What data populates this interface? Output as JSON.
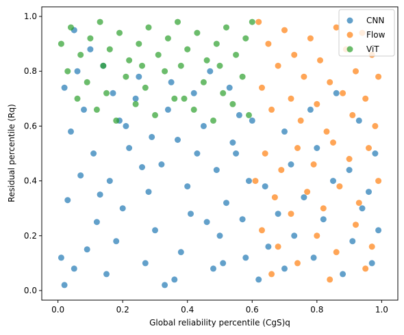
{
  "chart_data": {
    "type": "scatter",
    "title": "",
    "xlabel": "Global reliability percentile (CgS)q",
    "ylabel": "Residual percentile (Rq)",
    "xlim": [
      -0.05,
      1.05
    ],
    "ylim": [
      -0.035,
      1.035
    ],
    "xticks": [
      "0.0",
      "0.2",
      "0.4",
      "0.6",
      "0.8",
      "1.0"
    ],
    "yticks": [
      "0.0",
      "0.2",
      "0.4",
      "0.6",
      "0.8",
      "1.0"
    ],
    "grid": false,
    "legend_position": "top-right",
    "series": [
      {
        "name": "CNN",
        "color": "#1f77b4",
        "points": [
          [
            0.02,
            0.02
          ],
          [
            0.05,
            0.08
          ],
          [
            0.09,
            0.15
          ],
          [
            0.12,
            0.25
          ],
          [
            0.03,
            0.33
          ],
          [
            0.07,
            0.42
          ],
          [
            0.11,
            0.5
          ],
          [
            0.04,
            0.58
          ],
          [
            0.08,
            0.66
          ],
          [
            0.02,
            0.74
          ],
          [
            0.06,
            0.8
          ],
          [
            0.15,
            0.06
          ],
          [
            0.18,
            0.18
          ],
          [
            0.2,
            0.3
          ],
          [
            0.16,
            0.4
          ],
          [
            0.22,
            0.52
          ],
          [
            0.19,
            0.62
          ],
          [
            0.24,
            0.7
          ],
          [
            0.27,
            0.1
          ],
          [
            0.3,
            0.22
          ],
          [
            0.28,
            0.36
          ],
          [
            0.32,
            0.46
          ],
          [
            0.29,
            0.56
          ],
          [
            0.34,
            0.66
          ],
          [
            0.36,
            0.04
          ],
          [
            0.38,
            0.14
          ],
          [
            0.41,
            0.28
          ],
          [
            0.4,
            0.38
          ],
          [
            0.43,
            0.5
          ],
          [
            0.45,
            0.6
          ],
          [
            0.42,
            0.72
          ],
          [
            0.48,
            0.08
          ],
          [
            0.5,
            0.2
          ],
          [
            0.52,
            0.32
          ],
          [
            0.49,
            0.44
          ],
          [
            0.54,
            0.54
          ],
          [
            0.56,
            0.64
          ],
          [
            0.53,
            0.74
          ],
          [
            0.58,
            0.12
          ],
          [
            0.57,
            0.26
          ],
          [
            0.59,
            0.4
          ],
          [
            0.55,
            0.5
          ],
          [
            0.6,
            0.62
          ],
          [
            0.62,
            0.04
          ],
          [
            0.65,
            0.16
          ],
          [
            0.68,
            0.28
          ],
          [
            0.64,
            0.38
          ],
          [
            0.7,
            0.08
          ],
          [
            0.73,
            0.2
          ],
          [
            0.76,
            0.34
          ],
          [
            0.72,
            0.46
          ],
          [
            0.79,
            0.12
          ],
          [
            0.82,
            0.26
          ],
          [
            0.85,
            0.4
          ],
          [
            0.8,
            0.52
          ],
          [
            0.88,
            0.06
          ],
          [
            0.91,
            0.18
          ],
          [
            0.94,
            0.3
          ],
          [
            0.9,
            0.44
          ],
          [
            0.97,
            0.1
          ],
          [
            0.99,
            0.22
          ],
          [
            0.96,
            0.36
          ],
          [
            0.98,
            0.5
          ],
          [
            0.93,
            0.62
          ],
          [
            0.86,
            0.72
          ],
          [
            0.78,
            0.66
          ],
          [
            0.7,
            0.58
          ],
          [
            0.14,
            0.82
          ],
          [
            0.1,
            0.88
          ],
          [
            0.25,
            0.78
          ],
          [
            0.35,
            0.76
          ],
          [
            0.47,
            0.8
          ],
          [
            0.01,
            0.12
          ],
          [
            0.13,
            0.35
          ],
          [
            0.26,
            0.45
          ],
          [
            0.37,
            0.55
          ],
          [
            0.46,
            0.25
          ],
          [
            0.51,
            0.1
          ],
          [
            0.33,
            0.02
          ],
          [
            0.21,
            0.6
          ],
          [
            0.17,
            0.72
          ],
          [
            0.05,
            0.95
          ]
        ]
      },
      {
        "name": "Flow",
        "color": "#ff7f0e",
        "points": [
          [
            0.62,
            0.98
          ],
          [
            0.65,
            0.9
          ],
          [
            0.68,
            0.82
          ],
          [
            0.63,
            0.74
          ],
          [
            0.66,
            0.66
          ],
          [
            0.7,
            0.95
          ],
          [
            0.73,
            0.86
          ],
          [
            0.76,
            0.78
          ],
          [
            0.72,
            0.7
          ],
          [
            0.75,
            0.62
          ],
          [
            0.78,
            0.92
          ],
          [
            0.81,
            0.84
          ],
          [
            0.84,
            0.76
          ],
          [
            0.8,
            0.68
          ],
          [
            0.83,
            0.58
          ],
          [
            0.86,
            0.96
          ],
          [
            0.89,
            0.88
          ],
          [
            0.92,
            0.8
          ],
          [
            0.88,
            0.72
          ],
          [
            0.91,
            0.64
          ],
          [
            0.94,
            0.94
          ],
          [
            0.97,
            0.86
          ],
          [
            0.99,
            0.78
          ],
          [
            0.95,
            0.7
          ],
          [
            0.98,
            0.6
          ],
          [
            0.64,
            0.5
          ],
          [
            0.69,
            0.44
          ],
          [
            0.74,
            0.52
          ],
          [
            0.79,
            0.46
          ],
          [
            0.85,
            0.54
          ],
          [
            0.9,
            0.48
          ],
          [
            0.96,
            0.52
          ],
          [
            0.61,
            0.4
          ],
          [
            0.67,
            0.34
          ],
          [
            0.72,
            0.28
          ],
          [
            0.77,
            0.36
          ],
          [
            0.82,
            0.3
          ],
          [
            0.87,
            0.38
          ],
          [
            0.93,
            0.32
          ],
          [
            0.99,
            0.4
          ],
          [
            0.63,
            0.22
          ],
          [
            0.68,
            0.16
          ],
          [
            0.74,
            0.1
          ],
          [
            0.8,
            0.2
          ],
          [
            0.86,
            0.14
          ],
          [
            0.92,
            0.24
          ],
          [
            0.97,
            0.16
          ],
          [
            0.66,
            0.06
          ],
          [
            0.84,
            0.04
          ],
          [
            0.95,
            0.08
          ]
        ]
      },
      {
        "name": "ViT",
        "color": "#2ca02c",
        "points": [
          [
            0.01,
            0.9
          ],
          [
            0.04,
            0.96
          ],
          [
            0.07,
            0.86
          ],
          [
            0.1,
            0.92
          ],
          [
            0.13,
            0.98
          ],
          [
            0.16,
            0.88
          ],
          [
            0.19,
            0.94
          ],
          [
            0.22,
            0.84
          ],
          [
            0.25,
            0.9
          ],
          [
            0.28,
            0.96
          ],
          [
            0.31,
            0.86
          ],
          [
            0.34,
            0.92
          ],
          [
            0.37,
            0.98
          ],
          [
            0.4,
            0.88
          ],
          [
            0.43,
            0.94
          ],
          [
            0.46,
            0.84
          ],
          [
            0.49,
            0.9
          ],
          [
            0.52,
            0.96
          ],
          [
            0.55,
            0.86
          ],
          [
            0.58,
            0.92
          ],
          [
            0.6,
            0.98
          ],
          [
            0.03,
            0.8
          ],
          [
            0.09,
            0.76
          ],
          [
            0.15,
            0.72
          ],
          [
            0.21,
            0.78
          ],
          [
            0.27,
            0.74
          ],
          [
            0.33,
            0.8
          ],
          [
            0.39,
            0.7
          ],
          [
            0.45,
            0.76
          ],
          [
            0.51,
            0.72
          ],
          [
            0.57,
            0.78
          ],
          [
            0.06,
            0.7
          ],
          [
            0.12,
            0.66
          ],
          [
            0.18,
            0.62
          ],
          [
            0.24,
            0.68
          ],
          [
            0.3,
            0.64
          ],
          [
            0.36,
            0.7
          ],
          [
            0.42,
            0.66
          ],
          [
            0.48,
            0.62
          ],
          [
            0.54,
            0.68
          ],
          [
            0.59,
            0.64
          ],
          [
            0.14,
            0.82
          ],
          [
            0.26,
            0.82
          ],
          [
            0.38,
            0.82
          ],
          [
            0.5,
            0.82
          ]
        ]
      }
    ]
  }
}
